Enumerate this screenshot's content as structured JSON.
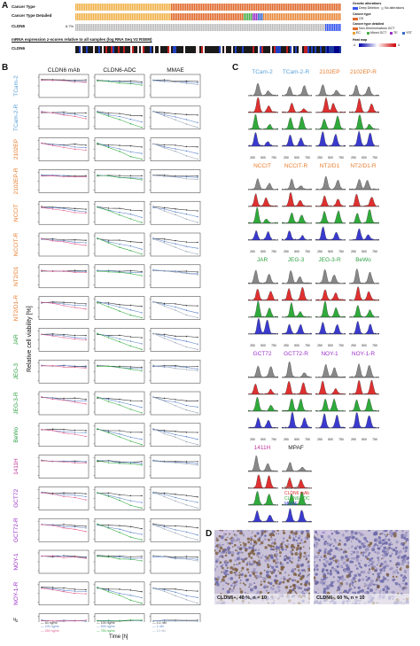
{
  "panelA": {
    "letter": "A",
    "rows": [
      {
        "label": "Cancer Type"
      },
      {
        "label": "Cancer Type Detailed"
      },
      {
        "label": "CLDN6",
        "pct": "6.7%"
      },
      {
        "label": "mRNA expression z-scores relative to all samples (log RNA Seq V2 RSEM)"
      },
      {
        "label": "CLDN6"
      }
    ],
    "legend": {
      "genetic_title": "Genetic alterations",
      "genetic_items": [
        "Deep Deletion",
        "No alterations"
      ],
      "cancer_type_title": "Cancer type",
      "cancer_type_items": [
        "GS"
      ],
      "cancer_detailed_title": "Cancer type detailed",
      "cancer_detailed_items": [
        "EC",
        "Mixed GCT",
        "TE",
        "YST",
        "Non-Seminomatous GCT"
      ],
      "heatmap_title": "Heat map",
      "heatmap_min": "-4",
      "heatmap_max": "4"
    },
    "colors": {
      "seminoma": "#e06a2c",
      "cldn6_bar": "#bdbdbd",
      "deep_deletion": "#3355ee"
    }
  },
  "panelB": {
    "letter": "B",
    "columns": [
      "CLDN6 mAb",
      "CLDN6-ADC",
      "MMAE"
    ],
    "ylabel": "Relative cell viability [%]",
    "xlabel": "Time [h]",
    "xticks": [
      "0",
      "24",
      "48",
      "72",
      "96"
    ],
    "rows": [
      {
        "name": "TCam-2",
        "color": "#5aa0d8"
      },
      {
        "name": "TCam-2-R",
        "color": "#5aa0d8"
      },
      {
        "name": "2102EP",
        "color": "#e87c2c"
      },
      {
        "name": "2102EP-R",
        "color": "#e87c2c"
      },
      {
        "name": "NCCIT",
        "color": "#e87c2c"
      },
      {
        "name": "NCCIT-R",
        "color": "#e87c2c"
      },
      {
        "name": "NT2/D1",
        "color": "#e87c2c"
      },
      {
        "name": "NT2/D1-R",
        "color": "#e87c2c"
      },
      {
        "name": "JAR",
        "color": "#2ea043"
      },
      {
        "name": "JEG-3",
        "color": "#2ea043"
      },
      {
        "name": "JEG-3-R",
        "color": "#2ea043"
      },
      {
        "name": "BeWo",
        "color": "#2ea043"
      },
      {
        "name": "1411H",
        "color": "#c0379a"
      },
      {
        "name": "GCT72",
        "color": "#9b30c8"
      },
      {
        "name": "GCT72-R",
        "color": "#9b30c8"
      },
      {
        "name": "NOY-1",
        "color": "#9b30c8"
      },
      {
        "name": "NOY-1-R",
        "color": "#9b30c8"
      },
      {
        "name": "MPAF",
        "color": "#222222"
      }
    ],
    "legend_groups": [
      [
        "50 ng/ml",
        "100 ng/ml",
        "250 ng/ml"
      ],
      [
        "100 ng/ml",
        "500 ng/ml",
        "750 ng/ml"
      ],
      [
        "0.1 nM",
        "1 nM",
        "10 nM"
      ]
    ]
  },
  "panelC": {
    "letter": "C",
    "cells": [
      {
        "name": "TCam-2",
        "color": "#5aa0d8"
      },
      {
        "name": "TCam-2-R",
        "color": "#5aa0d8"
      },
      {
        "name": "2102EP",
        "color": "#e87c2c"
      },
      {
        "name": "2102EP-R",
        "color": "#e87c2c"
      },
      {
        "name": "NCCIT",
        "color": "#e87c2c"
      },
      {
        "name": "NCCIT-R",
        "color": "#e87c2c"
      },
      {
        "name": "NT2/D1",
        "color": "#e87c2c"
      },
      {
        "name": "NT2/D1-R",
        "color": "#e87c2c"
      },
      {
        "name": "JAR",
        "color": "#2ea043"
      },
      {
        "name": "JEG-3",
        "color": "#2ea043"
      },
      {
        "name": "JEG-3-R",
        "color": "#2ea043"
      },
      {
        "name": "BeWo",
        "color": "#2ea043"
      },
      {
        "name": "GCT72",
        "color": "#9b30c8"
      },
      {
        "name": "GCT72-R",
        "color": "#9b30c8"
      },
      {
        "name": "NOY-1",
        "color": "#9b30c8"
      },
      {
        "name": "NOY-1-R",
        "color": "#9b30c8"
      },
      {
        "name": "1411H",
        "color": "#c0379a"
      },
      {
        "name": "MPAF",
        "color": "#222222"
      }
    ],
    "axis_ticks": [
      "250",
      "500",
      "750"
    ],
    "axis_label": "PI",
    "legend": [
      {
        "label": "Unt. ctrl",
        "color": "#888888"
      },
      {
        "label": "CLDN6 mAb",
        "color": "#e03030"
      },
      {
        "label": "CLDN6-ADC",
        "color": "#2faa3b"
      },
      {
        "label": "MMAE",
        "color": "#3a3ad0"
      }
    ]
  },
  "panelD": {
    "letter": "D",
    "images": [
      {
        "tag": "YST-R",
        "caption": "CLDN6+, 40 %, n = 10"
      },
      {
        "tag": "YST-R",
        "caption": "CLDN6-, 60 %, n = 10"
      }
    ]
  }
}
